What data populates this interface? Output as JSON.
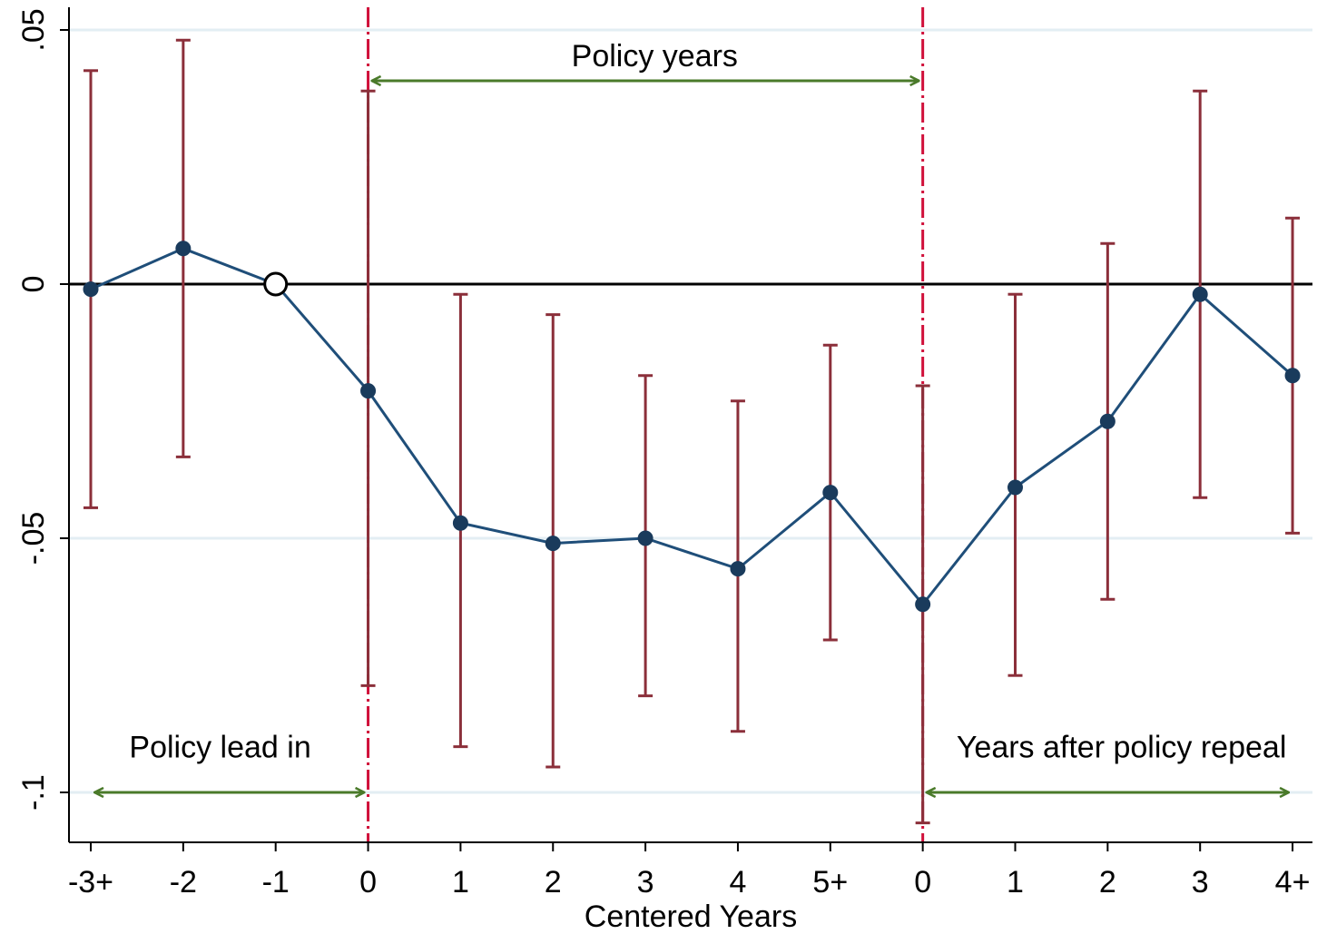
{
  "chart_data": {
    "type": "line",
    "xlabel": "Centered Years",
    "ylabel": "",
    "ylim": [
      -0.11,
      0.055
    ],
    "grid": true,
    "x_positions": [
      0,
      1,
      2,
      3,
      4,
      5,
      6,
      7,
      8,
      9,
      10,
      11,
      12,
      13
    ],
    "categories": [
      "-3+",
      "-2",
      "-1",
      "0",
      "1",
      "2",
      "3",
      "4",
      "5+",
      "0",
      "1",
      "2",
      "3",
      "4+"
    ],
    "y_ticks": [
      0.05,
      0,
      -0.05,
      -0.1
    ],
    "y_tick_labels": [
      ".05",
      "0",
      "-.05",
      "-.1"
    ],
    "series": [
      {
        "values": [
          -0.001,
          0.007,
          0.0,
          -0.021,
          -0.047,
          -0.051,
          -0.05,
          -0.056,
          -0.041,
          -0.063,
          -0.04,
          -0.027,
          -0.002,
          -0.018
        ],
        "ci_low": [
          -0.044,
          -0.034,
          null,
          -0.079,
          -0.091,
          -0.095,
          -0.081,
          -0.088,
          -0.07,
          -0.106,
          -0.077,
          -0.062,
          -0.042,
          -0.049
        ],
        "ci_high": [
          0.042,
          0.048,
          null,
          0.038,
          -0.002,
          -0.006,
          -0.018,
          -0.023,
          -0.012,
          -0.02,
          -0.002,
          0.008,
          0.038,
          0.013
        ],
        "omitted_index": 2
      }
    ],
    "reference_line_y": 0,
    "vertical_lines_x": [
      3,
      9
    ],
    "annotations": [
      {
        "text": "Policy years",
        "arrow_from": 3,
        "arrow_to": 9,
        "label_x": 6.1,
        "label_y": 0.045,
        "arrow_y": 0.04
      },
      {
        "text": "Policy lead in",
        "arrow_from": 0,
        "arrow_to": 3,
        "label_x": 1.4,
        "label_y": -0.091,
        "arrow_y": -0.1
      },
      {
        "text": "Years after policy repeal",
        "arrow_from": 9,
        "arrow_to": 13,
        "label_x": 11.15,
        "label_y": -0.091,
        "arrow_y": -0.1
      }
    ],
    "colors": {
      "line": "#1f4e79",
      "marker": "#1a3b5c",
      "ci": "#8b2f3a",
      "vline": "#d0103a",
      "arrow": "#4a7a2a",
      "grid": "#e3eef3",
      "zero": "#000000"
    }
  }
}
